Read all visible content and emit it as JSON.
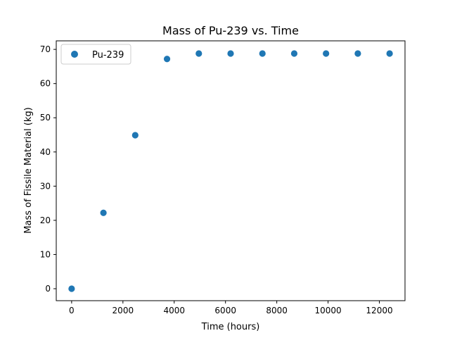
{
  "chart_data": {
    "type": "scatter",
    "title": "Mass of Pu-239 vs. Time",
    "xlabel": "Time (hours)",
    "ylabel": "Mass of Fissile Material (kg)",
    "xlim": [
      -600,
      13000
    ],
    "ylim": [
      -3.5,
      72.5
    ],
    "xticks": [
      0,
      2000,
      4000,
      6000,
      8000,
      10000,
      12000
    ],
    "yticks": [
      0,
      10,
      20,
      30,
      40,
      50,
      60,
      70
    ],
    "grid": false,
    "legend_position": "upper-left",
    "series": [
      {
        "name": "Pu-239",
        "color": "#1f77b4",
        "x": [
          0,
          1240,
          2480,
          3720,
          4960,
          6200,
          7440,
          8680,
          9920,
          11160,
          12400
        ],
        "y": [
          0,
          22.2,
          44.9,
          67.2,
          68.8,
          68.8,
          68.8,
          68.8,
          68.8,
          68.8,
          68.8
        ]
      }
    ]
  }
}
